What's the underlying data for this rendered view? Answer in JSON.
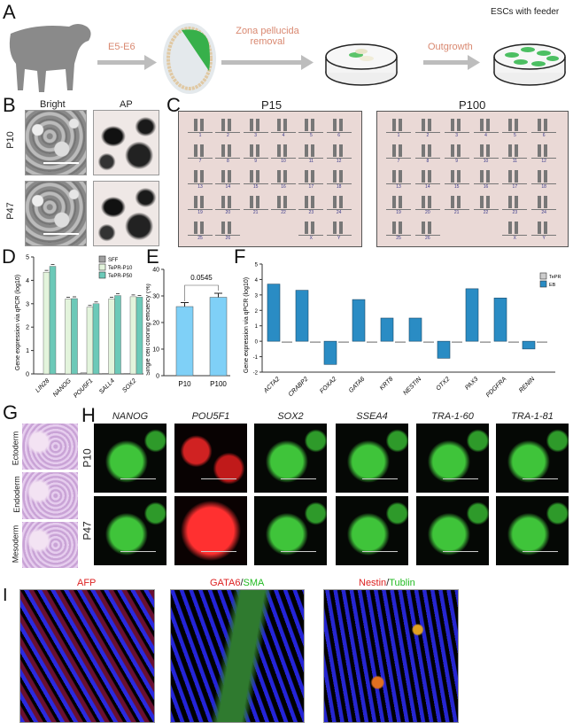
{
  "panels": {
    "A": "A",
    "B": "B",
    "C": "C",
    "D": "D",
    "E": "E",
    "F": "F",
    "G": "G",
    "H": "H",
    "I": "I"
  },
  "panel_a": {
    "step1": "E5-E6",
    "step2_line1": "Zona pellucida",
    "step2_line2": "removal",
    "step3": "Outgrowth",
    "result": "ESCs with feeder"
  },
  "panel_b": {
    "col_bright": "Bright",
    "col_ap": "AP",
    "row_p10": "P10",
    "row_p47": "P47"
  },
  "panel_c": {
    "left_title": "P15",
    "right_title": "P100",
    "chromosomes": [
      "1",
      "2",
      "3",
      "4",
      "5",
      "6",
      "7",
      "8",
      "9",
      "10",
      "11",
      "12",
      "13",
      "14",
      "15",
      "16",
      "17",
      "18",
      "19",
      "20",
      "21",
      "22",
      "23",
      "24",
      "25",
      "26",
      "X",
      "Y"
    ]
  },
  "panel_g": {
    "rows": [
      "Ectoderm",
      "Endoderm",
      "Mesoderm"
    ]
  },
  "panel_h": {
    "markers": [
      "NANOG",
      "POU5F1",
      "SOX2",
      "SSEA4",
      "TRA-1-60",
      "TRA-1-81"
    ],
    "rows": [
      "P10",
      "P47"
    ]
  },
  "panel_i": {
    "afp": "AFP",
    "gata6": "GATA6",
    "slash1": "/",
    "sma": "SMA",
    "nestin": "Nestin",
    "slash2": "/",
    "tublin": "Tublin"
  },
  "chart_data": [
    {
      "type": "bar",
      "panel": "D",
      "ylabel": "Gene expression via qPCR (log10)",
      "ylim": [
        0,
        5
      ],
      "yticks": [
        "0",
        "1",
        "2",
        "3",
        "4",
        "5"
      ],
      "categories": [
        "LIN28",
        "NANOG",
        "POU5F1",
        "SALL4",
        "SOX2"
      ],
      "series": [
        {
          "name": "SFF",
          "color": "#a0a0a0",
          "values": [
            0.0,
            0.0,
            0.05,
            0.02,
            0.02
          ]
        },
        {
          "name": "TePR-P10",
          "color": "#e3f4dc",
          "values": [
            4.35,
            3.2,
            2.85,
            3.2,
            3.3
          ]
        },
        {
          "name": "TePR-P50",
          "color": "#6cc9b8",
          "values": [
            4.6,
            3.22,
            3.0,
            3.35,
            3.28
          ]
        }
      ],
      "legend": "top-right"
    },
    {
      "type": "bar",
      "panel": "E",
      "ylabel": "Single cell coloning efficiency (%)",
      "ylim": [
        0,
        40
      ],
      "yticks": [
        "0",
        "10",
        "20",
        "30",
        "40"
      ],
      "categories": [
        "P10",
        "P100"
      ],
      "values": [
        26,
        29.5
      ],
      "color": "#7fd0f7",
      "annotation": "0.0545"
    },
    {
      "type": "bar",
      "panel": "F",
      "ylabel": "Gene expression via qPCR (log10)",
      "ylim": [
        -2,
        5
      ],
      "yticks": [
        "-2",
        "-1",
        "0",
        "1",
        "2",
        "3",
        "4",
        "5"
      ],
      "categories": [
        "ACTA2",
        "CRABP2",
        "FOXA2",
        "GATA6",
        "KRT8",
        "NESTIN",
        "OTX2",
        "PAX3",
        "PDGFRA",
        "RENIN"
      ],
      "series": [
        {
          "name": "EB",
          "color": "#2a8cc4",
          "values": [
            3.7,
            3.3,
            -1.5,
            2.7,
            1.5,
            1.5,
            -1.1,
            3.4,
            2.8,
            -0.5
          ]
        },
        {
          "name": "TePR",
          "color": "#cccccc",
          "values": [
            -0.05,
            -0.05,
            -0.02,
            -0.05,
            -0.02,
            -0.02,
            -0.02,
            -0.02,
            0,
            -0.02
          ]
        }
      ],
      "legend": "top-right"
    }
  ]
}
